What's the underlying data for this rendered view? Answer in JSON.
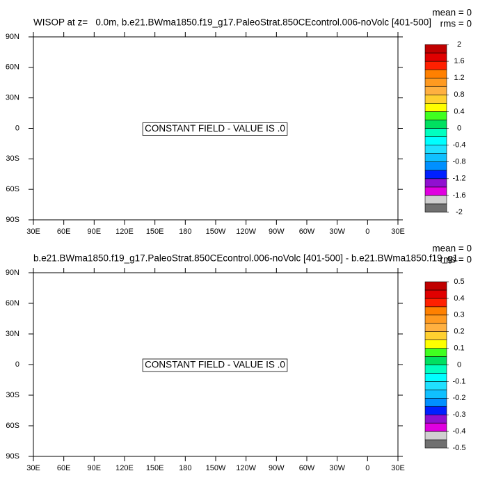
{
  "chart_data": [
    {
      "type": "map",
      "title": "WISOP at z=   0.0m, b.e21.BWma1850.f19_g17.PaleoStrat.850CEcontrol.006-noVolc [401-500]",
      "mean_label": "mean = 0",
      "rms_label": "rms = 0",
      "annotation": "CONSTANT FIELD - VALUE IS .0",
      "xlim": [
        30,
        390
      ],
      "xticks": [
        {
          "value": 30,
          "label": "30E"
        },
        {
          "value": 60,
          "label": "60E"
        },
        {
          "value": 90,
          "label": "90E"
        },
        {
          "value": 120,
          "label": "120E"
        },
        {
          "value": 150,
          "label": "150E"
        },
        {
          "value": 180,
          "label": "180"
        },
        {
          "value": 210,
          "label": "150W"
        },
        {
          "value": 240,
          "label": "120W"
        },
        {
          "value": 270,
          "label": "90W"
        },
        {
          "value": 300,
          "label": "60W"
        },
        {
          "value": 330,
          "label": "30W"
        },
        {
          "value": 360,
          "label": "0"
        },
        {
          "value": 390,
          "label": "30E"
        }
      ],
      "ylim": [
        -90,
        90
      ],
      "yticks": [
        {
          "value": 90,
          "label": "90N"
        },
        {
          "value": 60,
          "label": "60N"
        },
        {
          "value": 30,
          "label": "30N"
        },
        0,
        {
          "value": -30,
          "label": "30S"
        },
        {
          "value": -60,
          "label": "60S"
        },
        {
          "value": -90,
          "label": "90S"
        }
      ],
      "colorbar": {
        "lim": [
          -2,
          2
        ],
        "ticks": [
          2,
          1.6,
          1.2,
          0.8,
          0.4,
          0,
          -0.4,
          -0.8,
          -1.2,
          -1.6,
          -2
        ],
        "colors": [
          "#707070",
          "#d0d0d0",
          "#e000e0",
          "#9010d0",
          "#0020ff",
          "#0090ff",
          "#10c0ff",
          "#20e0ff",
          "#00ffff",
          "#00ffc0",
          "#00e060",
          "#40ff20",
          "#ffff00",
          "#ffd030",
          "#ffb040",
          "#ff9a20",
          "#ff8000",
          "#ff2000",
          "#e00000",
          "#c00000"
        ]
      }
    },
    {
      "type": "map",
      "title": "b.e21.BWma1850.f19_g17.PaleoStrat.850CEcontrol.006-noVolc [401-500] - b.e21.BWma1850.f19_g1",
      "mean_label": "mean = 0",
      "rms_label": "rms = 0",
      "annotation": "CONSTANT FIELD - VALUE IS .0",
      "xlim": [
        30,
        390
      ],
      "xticks": [
        {
          "value": 30,
          "label": "30E"
        },
        {
          "value": 60,
          "label": "60E"
        },
        {
          "value": 90,
          "label": "90E"
        },
        {
          "value": 120,
          "label": "120E"
        },
        {
          "value": 150,
          "label": "150E"
        },
        {
          "value": 180,
          "label": "180"
        },
        {
          "value": 210,
          "label": "150W"
        },
        {
          "value": 240,
          "label": "120W"
        },
        {
          "value": 270,
          "label": "90W"
        },
        {
          "value": 300,
          "label": "60W"
        },
        {
          "value": 330,
          "label": "30W"
        },
        {
          "value": 360,
          "label": "0"
        },
        {
          "value": 390,
          "label": "30E"
        }
      ],
      "ylim": [
        -90,
        90
      ],
      "yticks": [
        {
          "value": 90,
          "label": "90N"
        },
        {
          "value": 60,
          "label": "60N"
        },
        {
          "value": 30,
          "label": "30N"
        },
        0,
        {
          "value": -30,
          "label": "30S"
        },
        {
          "value": -60,
          "label": "60S"
        },
        {
          "value": -90,
          "label": "90S"
        }
      ],
      "colorbar": {
        "lim": [
          -0.5,
          0.5
        ],
        "ticks": [
          0.5,
          0.4,
          0.3,
          0.2,
          0.1,
          0,
          -0.1,
          -0.2,
          -0.3,
          -0.4,
          -0.5
        ],
        "colors": [
          "#707070",
          "#d0d0d0",
          "#e000e0",
          "#9010d0",
          "#0020ff",
          "#0090ff",
          "#10c0ff",
          "#20e0ff",
          "#00ffff",
          "#00ffc0",
          "#00e060",
          "#40ff20",
          "#ffff00",
          "#ffd030",
          "#ffb040",
          "#ff9a20",
          "#ff8000",
          "#ff2000",
          "#e00000",
          "#c00000"
        ]
      }
    }
  ]
}
